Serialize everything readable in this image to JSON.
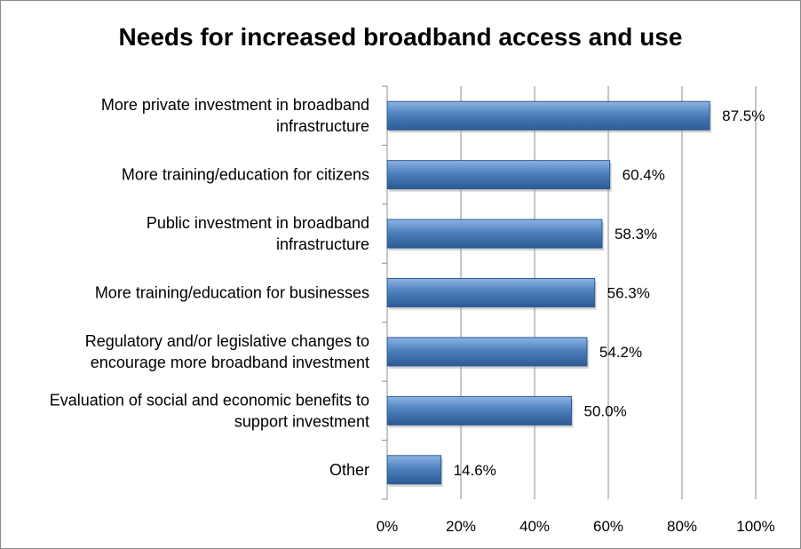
{
  "chart_data": {
    "type": "bar",
    "orientation": "horizontal",
    "title": "Needs for increased broadband access and use",
    "categories": [
      [
        "More private investment in broadband",
        "infrastructure"
      ],
      [
        "More training/education for citizens"
      ],
      [
        "Public investment in broadband",
        "infrastructure"
      ],
      [
        "More training/education for businesses"
      ],
      [
        "Regulatory and/or legislative changes to",
        "encourage more broadband investment"
      ],
      [
        "Evaluation of social and economic benefits to",
        "support investment"
      ],
      [
        "Other"
      ]
    ],
    "values": [
      87.5,
      60.4,
      58.3,
      56.3,
      54.2,
      50.0,
      14.6
    ],
    "data_labels": [
      "87.5%",
      "60.4%",
      "58.3%",
      "56.3%",
      "54.2%",
      "50.0%",
      "14.6%"
    ],
    "xlim": [
      0,
      100
    ],
    "ticks": [
      0,
      20,
      40,
      60,
      80,
      100
    ],
    "tick_labels": [
      "0%",
      "20%",
      "40%",
      "60%",
      "80%",
      "100%"
    ],
    "grid": "vertical",
    "bar_color": "#4f81bd",
    "bar_dark": "#2c5a93",
    "bar_light": "#8db3e2"
  }
}
